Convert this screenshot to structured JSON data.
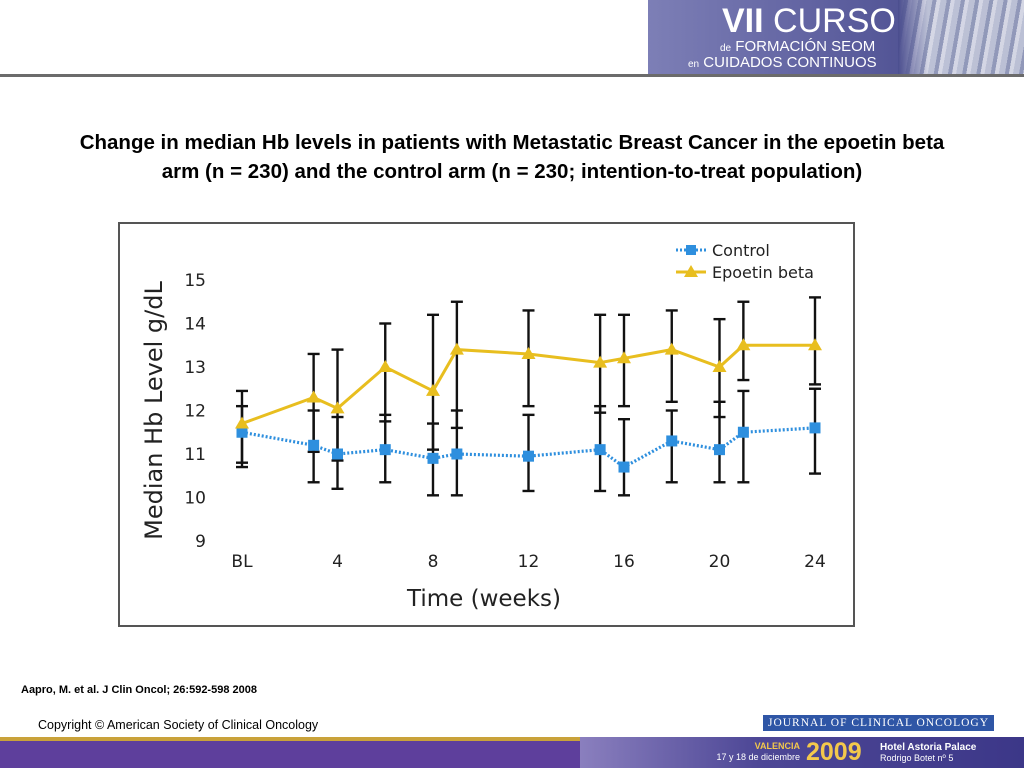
{
  "banner": {
    "title_roman": "VII",
    "title_word": "CURSO",
    "line2_prefix": "de",
    "line2_main": "FORMACIÓN SEOM",
    "line3_prefix": "en",
    "line3_main": "CUIDADOS CONTINUOS"
  },
  "slide_title": {
    "line1": "Change in median Hb levels in patients with Metastatic Breast Cancer in the epoetin beta",
    "line2": "arm (n = 230) and the control arm (n = 230; intention-to-treat population)"
  },
  "chart_data": {
    "type": "line",
    "title": "",
    "xlabel": "Time (weeks)",
    "ylabel": "Median Hb Level g/dL",
    "xlim": [
      0,
      24
    ],
    "ylim": [
      9,
      15
    ],
    "x_ticks": [
      {
        "x": 0,
        "label": "BL"
      },
      {
        "x": 4,
        "label": "4"
      },
      {
        "x": 8,
        "label": "8"
      },
      {
        "x": 12,
        "label": "12"
      },
      {
        "x": 16,
        "label": "16"
      },
      {
        "x": 20,
        "label": "20"
      },
      {
        "x": 24,
        "label": "24"
      }
    ],
    "y_ticks": [
      9,
      10,
      11,
      12,
      13,
      14,
      15
    ],
    "legend_position": "top-right",
    "series": [
      {
        "name": "Control",
        "color": "#2e8fde",
        "marker": "square",
        "line_style": "dotted",
        "points": [
          {
            "x": 0,
            "y": 11.5,
            "low": 10.7,
            "high": 12.1
          },
          {
            "x": 3,
            "y": 11.2,
            "low": 10.35,
            "high": 12.0
          },
          {
            "x": 4,
            "y": 11.0,
            "low": 10.2,
            "high": 11.85
          },
          {
            "x": 6,
            "y": 11.1,
            "low": 10.35,
            "high": 11.9
          },
          {
            "x": 8,
            "y": 10.9,
            "low": 10.05,
            "high": 11.7
          },
          {
            "x": 9,
            "y": 11.0,
            "low": 10.05,
            "high": 12.0
          },
          {
            "x": 12,
            "y": 10.95,
            "low": 10.15,
            "high": 11.9
          },
          {
            "x": 15,
            "y": 11.1,
            "low": 10.15,
            "high": 12.1
          },
          {
            "x": 16,
            "y": 10.7,
            "low": 10.05,
            "high": 11.8
          },
          {
            "x": 18,
            "y": 11.3,
            "low": 10.35,
            "high": 12.0
          },
          {
            "x": 20,
            "y": 11.1,
            "low": 10.35,
            "high": 12.2
          },
          {
            "x": 21,
            "y": 11.5,
            "low": 10.35,
            "high": 12.45
          },
          {
            "x": 24,
            "y": 11.6,
            "low": 10.55,
            "high": 12.5
          }
        ]
      },
      {
        "name": "Epoetin beta",
        "color": "#e8be1f",
        "marker": "triangle",
        "line_style": "solid",
        "points": [
          {
            "x": 0,
            "y": 11.7,
            "low": 10.8,
            "high": 12.45
          },
          {
            "x": 3,
            "y": 12.3,
            "low": 11.05,
            "high": 13.3
          },
          {
            "x": 4,
            "y": 12.05,
            "low": 10.85,
            "high": 13.4
          },
          {
            "x": 6,
            "y": 13.0,
            "low": 11.75,
            "high": 14.0
          },
          {
            "x": 8,
            "y": 12.45,
            "low": 11.1,
            "high": 14.2
          },
          {
            "x": 9,
            "y": 13.4,
            "low": 11.6,
            "high": 14.5
          },
          {
            "x": 12,
            "y": 13.3,
            "low": 12.1,
            "high": 14.3
          },
          {
            "x": 15,
            "y": 13.1,
            "low": 11.95,
            "high": 14.2
          },
          {
            "x": 16,
            "y": 13.2,
            "low": 12.1,
            "high": 14.2
          },
          {
            "x": 18,
            "y": 13.4,
            "low": 12.2,
            "high": 14.3
          },
          {
            "x": 20,
            "y": 13.0,
            "low": 11.85,
            "high": 14.1
          },
          {
            "x": 21,
            "y": 13.5,
            "low": 12.7,
            "high": 14.5
          },
          {
            "x": 24,
            "y": 13.5,
            "low": 12.6,
            "high": 14.6
          }
        ]
      }
    ]
  },
  "citation": "Aapro, M. et al. J Clin Oncol; 26:592-598 2008",
  "copyright": "Copyright  ©  American Society of Clinical Oncology",
  "journal_logo": "JOURNAL OF CLINICAL ONCOLOGY",
  "footer": {
    "city": "VALENCIA",
    "dates": "17 y 18 de diciembre",
    "year": "2009",
    "hotel_name": "Hotel Astoria Palace",
    "hotel_address": "Rodrigo Botet nº 5"
  }
}
